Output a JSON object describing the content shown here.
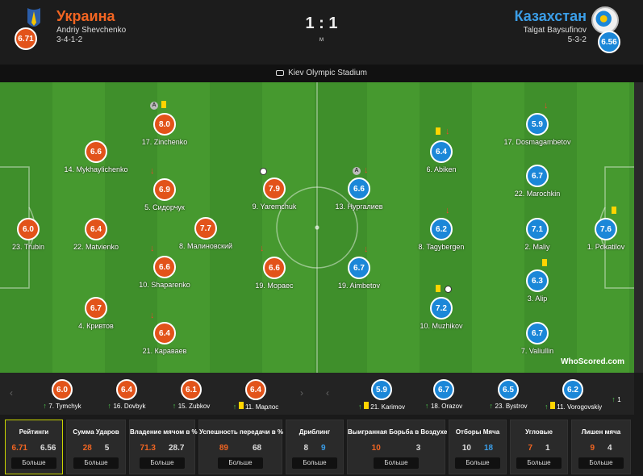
{
  "header": {
    "home_team": "Украина",
    "home_coach": "Andriy Shevchenko",
    "home_formation": "3-4-1-2",
    "home_rating": "6.71",
    "away_team": "Казахстан",
    "away_coach": "Talgat Baysufinov",
    "away_formation": "5-3-2",
    "away_rating": "6.56",
    "score": "1 : 1",
    "status": "м"
  },
  "stadium": "Kiev Olympic Stadium",
  "home_players": [
    {
      "rating": "6.0",
      "name": "23. Trubin"
    },
    {
      "rating": "6.6",
      "name": "14. Mykhaylichenko"
    },
    {
      "rating": "6.4",
      "name": "22. Matvienko"
    },
    {
      "rating": "6.7",
      "name": "4. Кривтов"
    },
    {
      "rating": "8.0",
      "name": "17. Zinchenko"
    },
    {
      "rating": "6.9",
      "name": "5. Сидорчук"
    },
    {
      "rating": "7.7",
      "name": "8. Малиновский"
    },
    {
      "rating": "6.6",
      "name": "10. Shaparenko"
    },
    {
      "rating": "6.4",
      "name": "21. Караваев"
    },
    {
      "rating": "7.9",
      "name": "9. Yaremchuk"
    },
    {
      "rating": "6.6",
      "name": "19. Мораес"
    }
  ],
  "away_players": [
    {
      "rating": "6.6",
      "name": "13. Нургалиев"
    },
    {
      "rating": "6.7",
      "name": "19. Aimbetov"
    },
    {
      "rating": "6.4",
      "name": "6. Abiken"
    },
    {
      "rating": "6.2",
      "name": "8. Tagybergen"
    },
    {
      "rating": "7.2",
      "name": "10. Muzhikov"
    },
    {
      "rating": "5.9",
      "name": "17. Dosmagambetov"
    },
    {
      "rating": "6.7",
      "name": "22. Marochkin"
    },
    {
      "rating": "7.1",
      "name": "2. Maliy"
    },
    {
      "rating": "6.3",
      "name": "3. Alip"
    },
    {
      "rating": "6.7",
      "name": "7. Valiullin"
    },
    {
      "rating": "7.6",
      "name": "1. Pokatilov"
    }
  ],
  "watermark": "WhoScored.com",
  "subs": [
    {
      "rating": "6.0",
      "name": "7. Tymchyk"
    },
    {
      "rating": "6.4",
      "name": "16. Dovbyk"
    },
    {
      "rating": "6.1",
      "name": "15. Zubkov"
    },
    {
      "rating": "6.4",
      "name": "11. Марлос"
    },
    {
      "rating": "5.9",
      "name": "21. Karimov"
    },
    {
      "rating": "6.7",
      "name": "18. Orazov"
    },
    {
      "rating": "6.5",
      "name": "23. Bystrov"
    },
    {
      "rating": "6.2",
      "name": "11. Vorogovskiy"
    },
    {
      "rating": "",
      "name": "1"
    }
  ],
  "stats": [
    {
      "title": "Рейтинги",
      "home": "6.71",
      "away": "6.56",
      "button": "Больше"
    },
    {
      "title": "Сумма Ударов",
      "home": "28",
      "away": "5",
      "button": "Больше"
    },
    {
      "title": "Владение мячом в %",
      "home": "71.3",
      "away": "28.7",
      "button": "Больше"
    },
    {
      "title": "Успешность передачи в %",
      "home": "89",
      "away": "68",
      "button": "Больше"
    },
    {
      "title": "Дриблинг",
      "home": "8",
      "away": "9",
      "button": "Больше"
    },
    {
      "title": "Выигранная Борьба в Воздухе",
      "home": "10",
      "away": "3",
      "button": "Больше"
    },
    {
      "title": "Отборы Мяча",
      "home": "10",
      "away": "18",
      "button": "Больше"
    },
    {
      "title": "Угловые",
      "home": "7",
      "away": "1",
      "button": "Больше"
    },
    {
      "title": "Лишен мяча",
      "home": "9",
      "away": "4",
      "button": "Больше"
    }
  ],
  "colors": {
    "home": "#e2531a",
    "away": "#1b87d8",
    "pitch": "#3f8f2b"
  }
}
